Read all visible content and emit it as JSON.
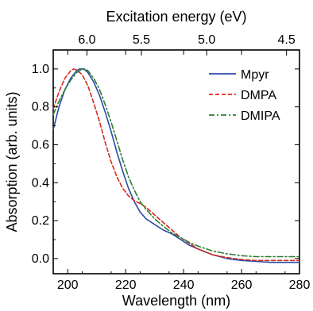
{
  "chart_data": {
    "type": "line",
    "xlabel": "Wavelength (nm)",
    "ylabel": "Absorption (arb. units)",
    "top_xlabel": "Excitation energy (eV)",
    "xlim": [
      195,
      280
    ],
    "ylim": [
      -0.08,
      1.1
    ],
    "x_ticks": [
      200,
      220,
      240,
      260,
      280
    ],
    "y_ticks": [
      0.0,
      0.2,
      0.4,
      0.6,
      0.8,
      1.0
    ],
    "x_tick_labels": [
      "200",
      "220",
      "240",
      "260",
      "280"
    ],
    "y_tick_labels": [
      "0.0",
      "0.2",
      "0.4",
      "0.6",
      "0.8",
      "1.0"
    ],
    "top_ticks": [
      6.0,
      5.5,
      5.0,
      4.5
    ],
    "top_tick_labels": [
      "6.0",
      "5.5",
      "5.0",
      "4.5"
    ],
    "legend_position": "top-right",
    "series": [
      {
        "name": "Mpyr",
        "color": "#2a4ba8",
        "style": "solid",
        "x": [
          195,
          197,
          199,
          201,
          203,
          204,
          205,
          206,
          207,
          209,
          211,
          213,
          215,
          217,
          219,
          221,
          223,
          225,
          227,
          230,
          233,
          236,
          239,
          242,
          245,
          250,
          255,
          260,
          265,
          270,
          275,
          280
        ],
        "y": [
          0.68,
          0.8,
          0.89,
          0.95,
          0.99,
          1.0,
          1.0,
          0.995,
          0.98,
          0.93,
          0.86,
          0.77,
          0.67,
          0.56,
          0.46,
          0.37,
          0.3,
          0.245,
          0.21,
          0.18,
          0.15,
          0.13,
          0.1,
          0.07,
          0.05,
          0.02,
          0.0,
          -0.01,
          -0.015,
          -0.02,
          -0.02,
          -0.02
        ]
      },
      {
        "name": "DMPA",
        "color": "#d62a1e",
        "style": "dashed",
        "x": [
          195,
          197,
          199,
          201,
          202,
          203,
          205,
          207,
          209,
          211,
          213,
          215,
          217,
          219,
          221,
          223,
          225,
          227,
          230,
          233,
          236,
          239,
          242,
          245,
          250,
          255,
          260,
          265,
          270,
          275,
          280
        ],
        "y": [
          0.79,
          0.88,
          0.95,
          0.99,
          1.0,
          0.995,
          0.97,
          0.91,
          0.82,
          0.72,
          0.61,
          0.51,
          0.43,
          0.37,
          0.33,
          0.305,
          0.29,
          0.27,
          0.23,
          0.19,
          0.15,
          0.11,
          0.08,
          0.05,
          0.02,
          0.005,
          -0.005,
          -0.01,
          -0.01,
          -0.01,
          -0.01
        ]
      },
      {
        "name": "DMIPA",
        "color": "#2e7d32",
        "style": "dashdot",
        "x": [
          195,
          197,
          199,
          201,
          203,
          205,
          206,
          207,
          209,
          211,
          213,
          215,
          217,
          219,
          221,
          223,
          225,
          227,
          230,
          233,
          236,
          239,
          242,
          245,
          250,
          255,
          260,
          265,
          270,
          275,
          280
        ],
        "y": [
          0.76,
          0.83,
          0.89,
          0.94,
          0.98,
          1.0,
          1.0,
          0.99,
          0.95,
          0.89,
          0.81,
          0.72,
          0.62,
          0.52,
          0.43,
          0.36,
          0.3,
          0.26,
          0.21,
          0.17,
          0.135,
          0.11,
          0.085,
          0.065,
          0.04,
          0.025,
          0.015,
          0.01,
          0.01,
          0.01,
          0.01
        ]
      }
    ]
  }
}
